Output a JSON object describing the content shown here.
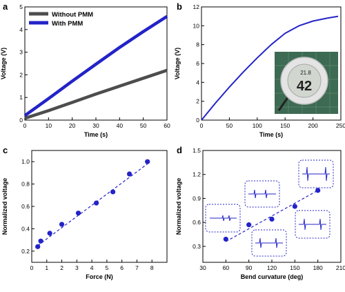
{
  "chart_data": [
    {
      "panel": "a",
      "type": "line",
      "xlabel": "Time (s)",
      "ylabel": "Voltage (V)",
      "xlim": [
        0,
        60
      ],
      "ylim": [
        0,
        5
      ],
      "xticks": [
        "0",
        "10",
        "20",
        "30",
        "40",
        "50",
        "60"
      ],
      "yticks": [
        "0",
        "1",
        "2",
        "3",
        "4",
        "5"
      ],
      "legend_position": "top-left",
      "series": [
        {
          "name": "Without PMM",
          "color": "#4d4d4d",
          "x": [
            0,
            10,
            20,
            30,
            40,
            50,
            60
          ],
          "y": [
            0.08,
            0.42,
            0.78,
            1.15,
            1.5,
            1.85,
            2.2
          ]
        },
        {
          "name": "With PMM",
          "color": "#2323c8",
          "x": [
            0,
            10,
            20,
            30,
            40,
            50,
            60
          ],
          "y": [
            0.2,
            0.95,
            1.72,
            2.47,
            3.21,
            3.91,
            4.58
          ]
        }
      ]
    },
    {
      "panel": "b",
      "type": "line",
      "xlabel": "Time (s)",
      "ylabel": "Voltage (V)",
      "xlim": [
        0,
        250
      ],
      "ylim": [
        0,
        12
      ],
      "xticks": [
        "0",
        "50",
        "100",
        "150",
        "200",
        "250"
      ],
      "yticks": [
        "0",
        "2",
        "4",
        "6",
        "8",
        "10",
        "12"
      ],
      "inset_display": {
        "temperature": "21.8",
        "humidity": "42"
      },
      "series": [
        {
          "name": "",
          "color": "#2323c8",
          "x": [
            0,
            25,
            50,
            75,
            100,
            125,
            150,
            175,
            200,
            225,
            245
          ],
          "y": [
            0,
            1.8,
            3.5,
            5.1,
            6.6,
            8.0,
            9.2,
            10.0,
            10.5,
            10.8,
            11.0
          ]
        }
      ]
    },
    {
      "panel": "c",
      "type": "scatter",
      "xlabel": "Force (N)",
      "ylabel": "Normalized voltage",
      "xlim": [
        0,
        9
      ],
      "ylim": [
        0.1,
        1.1
      ],
      "xticks": [
        "0",
        "1",
        "2",
        "3",
        "4",
        "5",
        "6",
        "7",
        "8"
      ],
      "yticks": [
        "0.2",
        "0.4",
        "0.6",
        "0.8",
        "1.0"
      ],
      "fit_line": {
        "x": [
          0.4,
          7.7
        ],
        "y": [
          0.25,
          0.98
        ]
      },
      "series": [
        {
          "name": "",
          "color": "#2323c8",
          "x": [
            0.4,
            0.6,
            1.2,
            2.0,
            3.1,
            4.3,
            5.4,
            6.5,
            7.7
          ],
          "y": [
            0.24,
            0.29,
            0.36,
            0.44,
            0.54,
            0.63,
            0.73,
            0.89,
            1.0
          ]
        }
      ]
    },
    {
      "panel": "d",
      "type": "scatter",
      "xlabel": "Bend curvature (deg)",
      "ylabel": "Normalized voltage",
      "xlim": [
        30,
        210
      ],
      "ylim": [
        0.1,
        1.5
      ],
      "xticks": [
        "30",
        "60",
        "90",
        "120",
        "150",
        "180",
        "210"
      ],
      "yticks": [
        "0.3",
        "0.6",
        "0.9",
        "1.2",
        "1.5"
      ],
      "fit_line": {
        "x": [
          60,
          180
        ],
        "y": [
          0.36,
          1.0
        ]
      },
      "series": [
        {
          "name": "",
          "color": "#2323c8",
          "x": [
            60,
            90,
            120,
            150,
            180
          ],
          "y": [
            0.39,
            0.57,
            0.64,
            0.8,
            1.0
          ]
        }
      ]
    }
  ]
}
